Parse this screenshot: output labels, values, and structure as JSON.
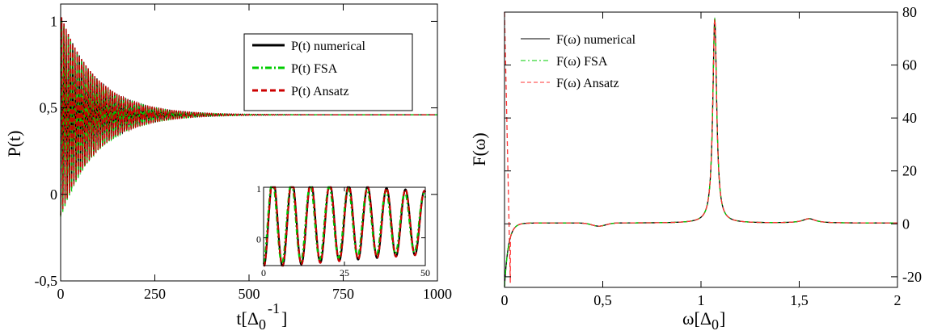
{
  "chart_data": [
    {
      "type": "line",
      "ylabel": "P(t)",
      "xlabel": "t[Δ",
      "xlabel_sub": "0",
      "xlabel_sup": "-1",
      "xlabel_close": "]",
      "xlim": [
        0,
        1000
      ],
      "ylim": [
        -0.5,
        1.1
      ],
      "xticks": [
        0,
        250,
        500,
        750,
        1000
      ],
      "xtick_labels": [
        "0",
        "250",
        "500",
        "750",
        "1000"
      ],
      "yticks": [
        -0.5,
        0,
        0.5,
        1
      ],
      "ytick_labels": [
        "-0,5",
        "0",
        "0,5",
        "1"
      ],
      "legend_position": "top-right",
      "grid": false,
      "series": [
        {
          "name": "P(t) numerical",
          "color": "#000000",
          "style": "solid"
        },
        {
          "name": "P(t) FSA",
          "color": "#00cc00",
          "style": "dashdot"
        },
        {
          "name": "P(t) Ansatz",
          "color": "#cc0000",
          "style": "dashed"
        }
      ],
      "signal": {
        "steady_value": 0.46,
        "initial_amplitude": 0.58,
        "decay_time": 95,
        "period": 5.85
      },
      "inset": {
        "xlim": [
          0,
          50
        ],
        "ylim": [
          -0.55,
          1.0
        ],
        "xticks": [
          0,
          25,
          50
        ],
        "xtick_labels": [
          "0",
          "25",
          "50"
        ],
        "yticks": [
          0,
          1
        ],
        "ytick_labels": [
          "0",
          "1"
        ]
      }
    },
    {
      "type": "line",
      "ylabel": "F(ω)",
      "xlabel": "ω[Δ",
      "xlabel_sub": "0",
      "xlabel_close": "]",
      "xlim": [
        0,
        2
      ],
      "ylim": [
        -24,
        80
      ],
      "xticks": [
        0,
        0.5,
        1,
        1.5,
        2
      ],
      "xtick_labels": [
        "0",
        "0,5",
        "1",
        "1,5",
        "2"
      ],
      "yticks": [
        -20,
        0,
        20,
        40,
        60,
        80
      ],
      "ytick_labels": [
        "-20",
        "0",
        "20",
        "40",
        "60",
        "80"
      ],
      "y_axis_side": "right",
      "legend_position": "top-left",
      "grid": false,
      "series": [
        {
          "name": "F(ω) numerical",
          "color": "#000000",
          "style": "solid"
        },
        {
          "name": "F(ω) FSA",
          "color": "#00cc00",
          "style": "dashdot"
        },
        {
          "name": "F(ω) Ansatz",
          "color": "#ff3333",
          "style": "dashed"
        }
      ],
      "peaks": [
        {
          "x": 1.07,
          "y": 77,
          "width": 0.012
        },
        {
          "x": 1.55,
          "y": 1.6,
          "width": 0.04
        }
      ]
    }
  ]
}
